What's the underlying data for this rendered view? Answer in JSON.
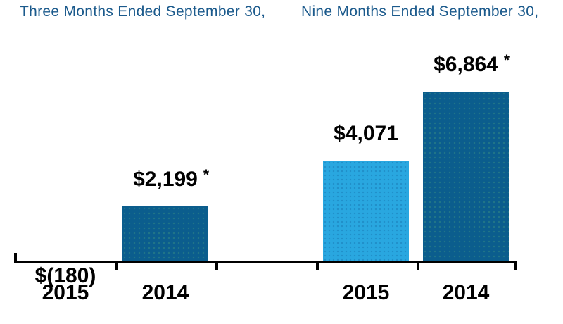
{
  "headers": {
    "three_months": "Three Months Ended September 30,",
    "nine_months": "Nine Months Ended September 30,"
  },
  "chart_data": {
    "type": "bar",
    "title": "",
    "xlabel": "",
    "ylabel": "",
    "ylim": [
      0,
      7000
    ],
    "gridlines": false,
    "legend": "none",
    "groups": [
      {
        "title": "Three Months Ended September 30,",
        "categories": [
          "2015",
          "2014"
        ],
        "values": [
          -180,
          2199
        ]
      },
      {
        "title": "Nine Months Ended September 30,",
        "categories": [
          "2015",
          "2014"
        ],
        "values": [
          4071,
          6864
        ]
      }
    ],
    "bars": [
      {
        "group": "Three Months Ended September 30,",
        "category": "2015",
        "value": -180,
        "label": "$(180)",
        "asterisk": "",
        "series": "2015"
      },
      {
        "group": "Three Months Ended September 30,",
        "category": "2014",
        "value": 2199,
        "label": "$2,199",
        "asterisk": "*",
        "series": "2014"
      },
      {
        "group": "Nine Months Ended September 30,",
        "category": "2015",
        "value": 4071,
        "label": "$4,071",
        "asterisk": "",
        "series": "2015"
      },
      {
        "group": "Nine Months Ended September 30,",
        "category": "2014",
        "value": 6864,
        "label": "$6,864",
        "asterisk": "*",
        "series": "2014"
      }
    ],
    "colors": {
      "2015": "#29A7E0",
      "2014": "#0B5D8D"
    },
    "text_colors": {
      "header": "#1B5A8C",
      "labels": "#000000"
    }
  }
}
